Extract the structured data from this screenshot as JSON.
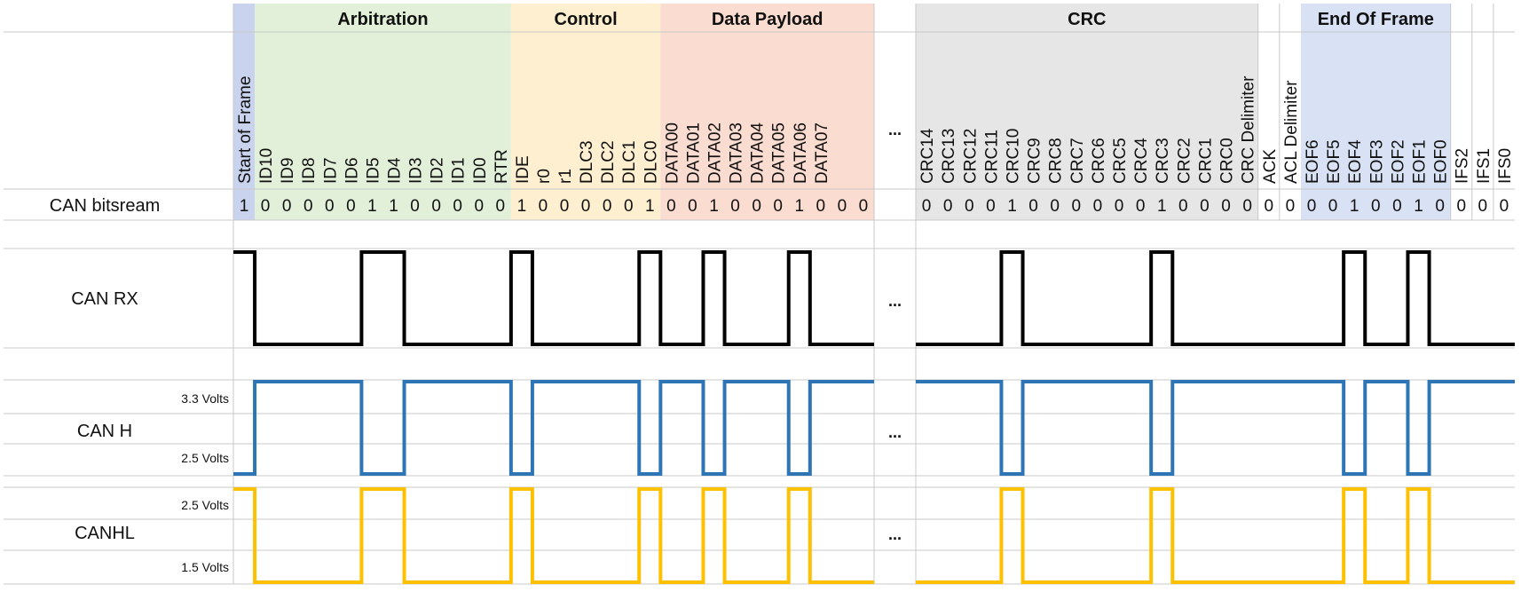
{
  "sections": [
    {
      "key": "sof",
      "label": "",
      "color": "#c9d3ee"
    },
    {
      "key": "arb",
      "label": "Arbitration",
      "color": "#e2efd9"
    },
    {
      "key": "ctl",
      "label": "Control",
      "color": "#fdefd0"
    },
    {
      "key": "data",
      "label": "Data Payload",
      "color": "#fbdcd0"
    },
    {
      "key": "crc",
      "label": "CRC",
      "color": "#e6e6e6"
    },
    {
      "key": "ack",
      "label": "",
      "color": "#ffffff"
    },
    {
      "key": "eof",
      "label": "End Of Frame",
      "color": "#d9e1f4"
    },
    {
      "key": "ifs",
      "label": "",
      "color": "#ffffff"
    }
  ],
  "bits": [
    {
      "label": "Start of Frame",
      "value": "1",
      "section": "sof"
    },
    {
      "label": "ID10",
      "value": "0",
      "section": "arb"
    },
    {
      "label": "ID9",
      "value": "0",
      "section": "arb"
    },
    {
      "label": "ID8",
      "value": "0",
      "section": "arb"
    },
    {
      "label": "ID7",
      "value": "0",
      "section": "arb"
    },
    {
      "label": "ID6",
      "value": "0",
      "section": "arb"
    },
    {
      "label": "ID5",
      "value": "1",
      "section": "arb"
    },
    {
      "label": "ID4",
      "value": "1",
      "section": "arb"
    },
    {
      "label": "ID3",
      "value": "0",
      "section": "arb"
    },
    {
      "label": "ID2",
      "value": "0",
      "section": "arb"
    },
    {
      "label": "ID1",
      "value": "0",
      "section": "arb"
    },
    {
      "label": "ID0",
      "value": "0",
      "section": "arb"
    },
    {
      "label": "RTR",
      "value": "0",
      "section": "arb"
    },
    {
      "label": "IDE",
      "value": "1",
      "section": "ctl"
    },
    {
      "label": "r0",
      "value": "0",
      "section": "ctl"
    },
    {
      "label": "r1",
      "value": "0",
      "section": "ctl"
    },
    {
      "label": "DLC3",
      "value": "0",
      "section": "ctl"
    },
    {
      "label": "DLC2",
      "value": "0",
      "section": "ctl"
    },
    {
      "label": "DLC1",
      "value": "0",
      "section": "ctl"
    },
    {
      "label": "DLC0",
      "value": "1",
      "section": "ctl"
    },
    {
      "label": "DATA00",
      "value": "0",
      "section": "data"
    },
    {
      "label": "DATA01",
      "value": "0",
      "section": "data"
    },
    {
      "label": "DATA02",
      "value": "1",
      "section": "data"
    },
    {
      "label": "DATA03",
      "value": "0",
      "section": "data"
    },
    {
      "label": "DATA04",
      "value": "0",
      "section": "data"
    },
    {
      "label": "DATA05",
      "value": "0",
      "section": "data"
    },
    {
      "label": "DATA06",
      "value": "1",
      "section": "data"
    },
    {
      "label": "DATA07",
      "value": "0",
      "section": "data"
    },
    {
      "label": "",
      "value": "0",
      "section": "data"
    },
    {
      "label": "",
      "value": "0",
      "section": "data"
    },
    {
      "label": "CRC14",
      "value": "0",
      "section": "crc"
    },
    {
      "label": "CRC13",
      "value": "0",
      "section": "crc"
    },
    {
      "label": "CRC12",
      "value": "0",
      "section": "crc"
    },
    {
      "label": "CRC11",
      "value": "0",
      "section": "crc"
    },
    {
      "label": "CRC10",
      "value": "1",
      "section": "crc"
    },
    {
      "label": "CRC9",
      "value": "0",
      "section": "crc"
    },
    {
      "label": "CRC8",
      "value": "0",
      "section": "crc"
    },
    {
      "label": "CRC7",
      "value": "0",
      "section": "crc"
    },
    {
      "label": "CRC6",
      "value": "0",
      "section": "crc"
    },
    {
      "label": "CRC5",
      "value": "0",
      "section": "crc"
    },
    {
      "label": "CRC4",
      "value": "0",
      "section": "crc"
    },
    {
      "label": "CRC3",
      "value": "1",
      "section": "crc"
    },
    {
      "label": "CRC2",
      "value": "0",
      "section": "crc"
    },
    {
      "label": "CRC1",
      "value": "0",
      "section": "crc"
    },
    {
      "label": "CRC0",
      "value": "0",
      "section": "crc"
    },
    {
      "label": "CRC Delimiter",
      "value": "0",
      "section": "crc"
    },
    {
      "label": "ACK",
      "value": "0",
      "section": "ack"
    },
    {
      "label": "ACL Delimiter",
      "value": "0",
      "section": "ack"
    },
    {
      "label": "EOF6",
      "value": "0",
      "section": "eof"
    },
    {
      "label": "EOF5",
      "value": "0",
      "section": "eof"
    },
    {
      "label": "EOF4",
      "value": "1",
      "section": "eof"
    },
    {
      "label": "EOF3",
      "value": "0",
      "section": "eof"
    },
    {
      "label": "EOF2",
      "value": "0",
      "section": "eof"
    },
    {
      "label": "EOF1",
      "value": "1",
      "section": "eof"
    },
    {
      "label": "EOF0",
      "value": "0",
      "section": "eof"
    },
    {
      "label": "IFS2",
      "value": "0",
      "section": "ifs"
    },
    {
      "label": "IFS1",
      "value": "0",
      "section": "ifs"
    },
    {
      "label": "IFS0",
      "value": "0",
      "section": "ifs"
    }
  ],
  "ellipsis": "...",
  "rows": {
    "bitstream": {
      "label": "CAN bitsream"
    },
    "rx": {
      "label": "CAN RX",
      "color": "#000000"
    },
    "canh": {
      "label": "CAN H",
      "high_label": "3.3 Volts",
      "low_label": "2.5 Volts",
      "color": "#2e75b6"
    },
    "canl": {
      "label": "CANHL",
      "high_label": "2.5 Volts",
      "low_label": "1.5 Volts",
      "color": "#ffc000"
    }
  }
}
